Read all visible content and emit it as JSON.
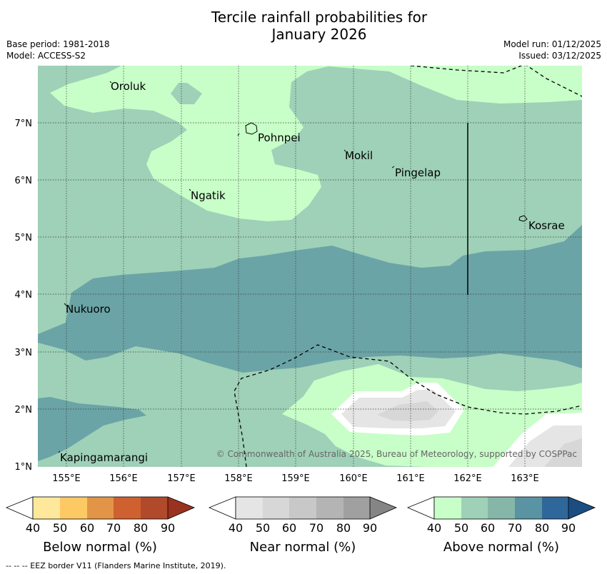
{
  "title_line1": "Tercile rainfall probabilities for",
  "title_line2": "January 2026",
  "base_period": "Base period: 1981-2018",
  "model": "Model: ACCESS-S2",
  "model_run": "Model run: 01/12/2025",
  "issued": "Issued: 03/12/2025",
  "copyright": "© Commonwealth of Australia 2025, Bureau of Meteorology, supported by COSPPac",
  "places": {
    "oroluk": "Oroluk",
    "pohnpei": "Pohnpei",
    "mokil": "Mokil",
    "pingelap": "Pingelap",
    "ngatik": "Ngatik",
    "kosrae": "Kosrae",
    "nukuoro": "Nukuoro",
    "kapingamarangi": "Kapingamarangi"
  },
  "lat_ticks": [
    "7°N",
    "6°N",
    "5°N",
    "4°N",
    "3°N",
    "2°N",
    "1°N"
  ],
  "lon_ticks": [
    "155°E",
    "156°E",
    "157°E",
    "158°E",
    "159°E",
    "160°E",
    "161°E",
    "162°E",
    "163°E"
  ],
  "colorbars": [
    {
      "title": "Below normal (%)",
      "ticks": [
        "40",
        "50",
        "60",
        "70",
        "80",
        "90"
      ],
      "colors": [
        "#ffffff",
        "#fee89c",
        "#fdc964",
        "#e29547",
        "#cf6130",
        "#b04a2a",
        "#9a3220"
      ]
    },
    {
      "title": "Near normal (%)",
      "ticks": [
        "40",
        "50",
        "60",
        "70",
        "80",
        "90"
      ],
      "colors": [
        "#ffffff",
        "#e5e5e5",
        "#d7d7d7",
        "#c8c8c8",
        "#b4b4b4",
        "#a0a0a0",
        "#858585"
      ]
    },
    {
      "title": "Above normal (%)",
      "ticks": [
        "40",
        "50",
        "60",
        "70",
        "80",
        "90"
      ],
      "colors": [
        "#ffffff",
        "#c8fec8",
        "#9ed1b8",
        "#86b6a8",
        "#5a94a2",
        "#30679a",
        "#1b4d82"
      ]
    }
  ],
  "map_colors": {
    "above_50": "#c8fec8",
    "above_60": "#9ed1b8",
    "above_70": "#6ba4a6",
    "near_50": "#e5e5e5",
    "near_60": "#d7d7d7"
  },
  "footnote": "--  --  -- EEZ border V11 (Flanders Marine Institute, 2019)."
}
